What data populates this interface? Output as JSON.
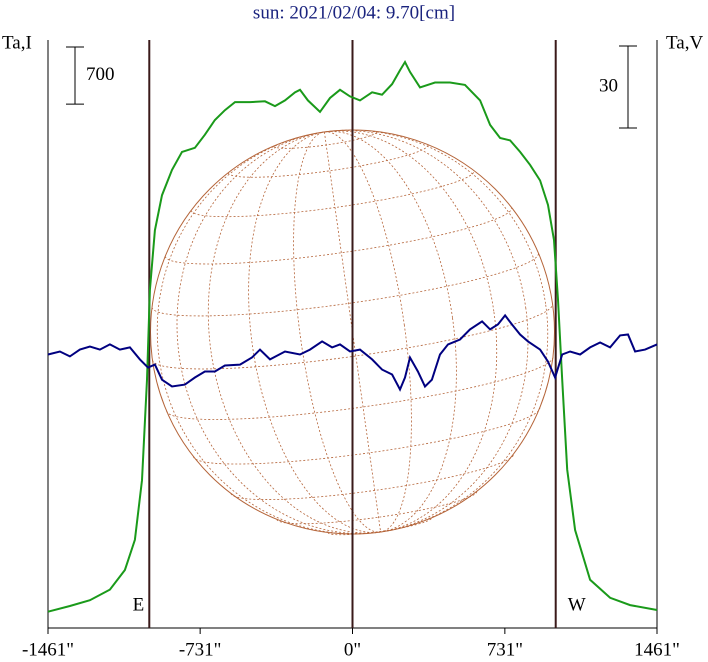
{
  "chart_data": {
    "type": "line",
    "title": "sun: 2021/02/04: 9.70[cm]",
    "y_label": "Ta,I",
    "y2_label": "Ta,V",
    "xlim": [
      -1461,
      1461
    ],
    "xticks": [
      {
        "value": -1461,
        "label": "-1461\""
      },
      {
        "value": -731,
        "label": "-731\""
      },
      {
        "value": 0,
        "label": "0\""
      },
      {
        "value": 731,
        "label": "731\""
      },
      {
        "value": 1461,
        "label": "1461\""
      }
    ],
    "ylim": [
      -200,
      7000
    ],
    "y2lim": [
      -100,
      115
    ],
    "scale_bars": [
      {
        "axis": "y",
        "value": 700
      },
      {
        "axis": "y2",
        "value": 30
      }
    ],
    "vlines": [
      -975,
      0,
      975
    ],
    "annotations": [
      "E",
      "W"
    ],
    "series": [
      {
        "name": "I",
        "color": "#1a9a1a",
        "x": [
          -1461,
          -1356,
          -1260,
          -1164,
          -1092,
          -1044,
          -1010,
          -986,
          -972,
          -948,
          -914,
          -866,
          -818,
          -756,
          -708,
          -660,
          -612,
          -564,
          -492,
          -420,
          -372,
          -324,
          -276,
          -252,
          -214,
          -156,
          -108,
          -60,
          -12,
          36,
          94,
          142,
          190,
          228,
          252,
          276,
          324,
          396,
          468,
          540,
          612,
          660,
          708,
          756,
          804,
          852,
          900,
          938,
          967,
          986,
          1006,
          1030,
          1068,
          1140,
          1236,
          1332,
          1461
        ],
        "values": [
          0,
          70,
          140,
          270,
          510,
          880,
          1610,
          2840,
          3940,
          4670,
          5100,
          5410,
          5630,
          5680,
          5840,
          6020,
          6140,
          6240,
          6240,
          6250,
          6190,
          6260,
          6360,
          6390,
          6260,
          6120,
          6290,
          6390,
          6310,
          6260,
          6360,
          6330,
          6460,
          6630,
          6730,
          6610,
          6420,
          6480,
          6480,
          6450,
          6260,
          5960,
          5800,
          5770,
          5630,
          5470,
          5280,
          4980,
          4550,
          3820,
          2840,
          1740,
          1000,
          390,
          170,
          80,
          20
        ]
      },
      {
        "name": "V",
        "color": "#000080",
        "axis": "y2",
        "x": [
          -1461,
          -1404,
          -1356,
          -1308,
          -1260,
          -1212,
          -1164,
          -1116,
          -1068,
          -1020,
          -981,
          -948,
          -914,
          -866,
          -804,
          -756,
          -708,
          -660,
          -612,
          -540,
          -482,
          -444,
          -396,
          -324,
          -252,
          -204,
          -146,
          -98,
          -60,
          -12,
          36,
          94,
          142,
          190,
          228,
          252,
          276,
          314,
          348,
          381,
          420,
          458,
          516,
          564,
          622,
          660,
          698,
          732,
          765,
          804,
          842,
          900,
          938,
          972,
          1006,
          1044,
          1092,
          1140,
          1188,
          1236,
          1284,
          1322,
          1356,
          1404,
          1461
        ],
        "values": [
          0,
          1.1,
          -0.7,
          1.8,
          2.9,
          1.8,
          3.7,
          1.8,
          2.6,
          -1.8,
          -4.8,
          -3.7,
          -9.2,
          -11.7,
          -11,
          -8.4,
          -6.2,
          -6.2,
          -4,
          -3.7,
          -1.1,
          1.8,
          -1.8,
          1.1,
          0,
          1.8,
          4.8,
          2.6,
          3.7,
          1.1,
          1.8,
          -1.8,
          -5.5,
          -7.3,
          -12.8,
          -8.4,
          -1.1,
          -6.2,
          -11.7,
          -9.2,
          0,
          3.7,
          5.5,
          9.2,
          12.1,
          9.2,
          11,
          14.3,
          11,
          7.3,
          4.8,
          1.8,
          -2.6,
          -8.4,
          0,
          1.1,
          0,
          2.6,
          4.4,
          2.6,
          7,
          7.3,
          1.1,
          1.8,
          3.7
        ]
      }
    ]
  }
}
